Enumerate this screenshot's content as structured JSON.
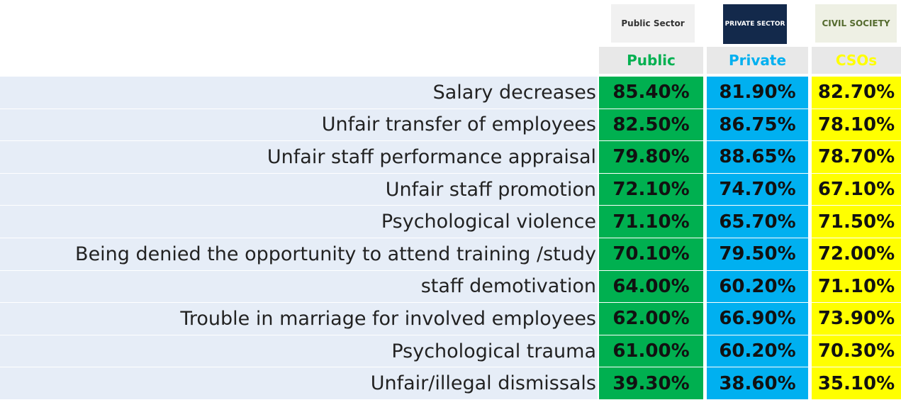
{
  "logos": [
    "Public Sector",
    "PRIVATE SECTOR",
    "CIVIL SOCIETY"
  ],
  "table": {
    "columns": [
      "Public",
      "Private",
      "CSOs"
    ],
    "rows": [
      {
        "label": "Salary decreases",
        "values": [
          "85.40%",
          "81.90%",
          "82.70%"
        ]
      },
      {
        "label": "Unfair transfer of employees",
        "values": [
          "82.50%",
          "86.75%",
          "78.10%"
        ]
      },
      {
        "label": "Unfair staff performance appraisal",
        "values": [
          "79.80%",
          "88.65%",
          "78.70%"
        ]
      },
      {
        "label": "Unfair staff promotion",
        "values": [
          "72.10%",
          "74.70%",
          "67.10%"
        ]
      },
      {
        "label": "Psychological violence",
        "values": [
          "71.10%",
          "65.70%",
          "71.50%"
        ]
      },
      {
        "label": "Being denied the opportunity to attend training /study",
        "values": [
          "70.10%",
          "79.50%",
          "72.00%"
        ]
      },
      {
        "label": "staff demotivation",
        "values": [
          "64.00%",
          "60.20%",
          "71.10%"
        ]
      },
      {
        "label": "Trouble in marriage for involved employees",
        "values": [
          "62.00%",
          "66.90%",
          "73.90%"
        ]
      },
      {
        "label": "Psychological trauma",
        "values": [
          "61.00%",
          "60.20%",
          "70.30%"
        ]
      },
      {
        "label": "Unfair/illegal dismissals",
        "values": [
          "39.30%",
          "38.60%",
          "35.10%"
        ]
      }
    ]
  }
}
